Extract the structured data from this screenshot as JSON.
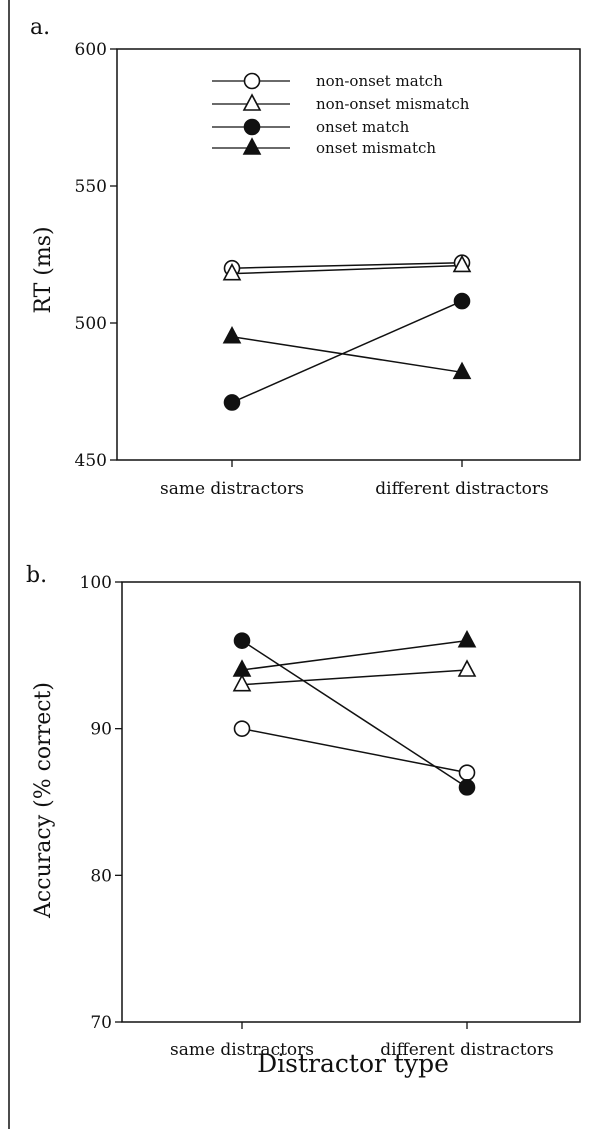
{
  "chart_data": [
    {
      "panel": "a.",
      "type": "line",
      "ylabel": "RT (ms)",
      "ylim": [
        450,
        600
      ],
      "yticks": [
        450,
        500,
        550,
        600
      ],
      "categories": [
        "same distractors",
        "different distractors"
      ],
      "legend": {
        "placement": "top-center"
      },
      "series": [
        {
          "name": "non-onset match",
          "marker": "circle",
          "fill": "open",
          "values": [
            520,
            522
          ]
        },
        {
          "name": "non-onset mismatch",
          "marker": "triangle",
          "fill": "open",
          "values": [
            518,
            521
          ]
        },
        {
          "name": "onset match",
          "marker": "circle",
          "fill": "filled",
          "values": [
            471,
            508
          ]
        },
        {
          "name": "onset mismatch",
          "marker": "triangle",
          "fill": "filled",
          "values": [
            495,
            482
          ]
        }
      ]
    },
    {
      "panel": "b.",
      "type": "line",
      "ylabel": "Accuracy (% correct)",
      "xlabel": "Distractor type",
      "ylim": [
        70,
        100
      ],
      "yticks": [
        70,
        80,
        90,
        100
      ],
      "categories": [
        "same distractors",
        "different distractors"
      ],
      "series": [
        {
          "name": "non-onset match",
          "marker": "circle",
          "fill": "open",
          "values": [
            90,
            87
          ]
        },
        {
          "name": "non-onset mismatch",
          "marker": "triangle",
          "fill": "open",
          "values": [
            93,
            94
          ]
        },
        {
          "name": "onset match",
          "marker": "circle",
          "fill": "filled",
          "values": [
            96,
            86
          ]
        },
        {
          "name": "onset mismatch",
          "marker": "triangle",
          "fill": "filled",
          "values": [
            94,
            96
          ]
        }
      ]
    }
  ]
}
